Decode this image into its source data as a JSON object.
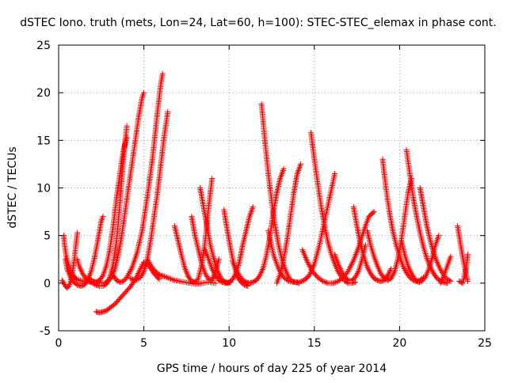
{
  "chart_data": {
    "type": "scatter",
    "title": "dSTEC Iono. truth (mets, Lon=24, Lat=60, h=100): STEC-STEC_elemax in phase cont.",
    "xlabel": "GPS time / hours of day 225 of year 2014",
    "ylabel": "dSTEC  / TECUs",
    "xlim": [
      0,
      25
    ],
    "ylim": [
      -5,
      25
    ],
    "xticks": [
      0,
      5,
      10,
      15,
      20,
      25
    ],
    "yticks": [
      -5,
      0,
      5,
      10,
      15,
      20,
      25
    ],
    "grid": true,
    "grid_style": "dotted",
    "legend": "none",
    "marker": "+",
    "color": "#ff0000",
    "series": [
      {
        "x": [
          0.3,
          0.35,
          0.45,
          0.6,
          0.75,
          0.9,
          1.05,
          1.2,
          1.35,
          1.5,
          1.7,
          1.9,
          2.1,
          2.4
        ],
        "y": [
          5.0,
          4.0,
          2.8,
          1.8,
          1.1,
          0.7,
          0.4,
          0.3,
          0.25,
          0.2,
          0.15,
          0.15,
          0.1,
          0.1
        ]
      },
      {
        "x": [
          0.2,
          0.3,
          0.4,
          0.5,
          0.6,
          0.7,
          0.8,
          0.9,
          1.0,
          1.1
        ],
        "y": [
          0.3,
          0.0,
          -0.3,
          -0.5,
          -0.3,
          0.2,
          1.0,
          2.2,
          3.8,
          5.3
        ]
      },
      {
        "x": [
          0.4,
          0.5,
          0.7,
          0.9,
          1.1,
          1.3,
          1.5,
          1.7,
          1.9,
          2.1,
          2.3,
          2.5,
          2.6
        ],
        "y": [
          2.5,
          1.5,
          0.6,
          0.1,
          -0.2,
          -0.3,
          -0.2,
          0.3,
          1.2,
          2.6,
          4.5,
          6.5,
          7.0
        ]
      },
      {
        "x": [
          1.1,
          1.2,
          1.4,
          1.6,
          1.8,
          2.0,
          2.2,
          2.4,
          2.6,
          2.8,
          3.0,
          3.2,
          3.4,
          3.6,
          3.8,
          4.0
        ],
        "y": [
          2.5,
          1.8,
          1.0,
          0.5,
          0.2,
          0.0,
          -0.2,
          -0.3,
          -0.3,
          -0.1,
          0.6,
          2.0,
          4.5,
          8.5,
          13.0,
          16.5
        ]
      },
      {
        "x": [
          1.8,
          2.0,
          2.2,
          2.4,
          2.6,
          2.8,
          3.0,
          3.2,
          3.4,
          3.6,
          3.8,
          4.0
        ],
        "y": [
          0.5,
          0.2,
          0.1,
          0.3,
          0.8,
          1.8,
          3.5,
          6.0,
          9.0,
          11.5,
          14.0,
          15.3
        ]
      },
      {
        "x": [
          2.5,
          2.7,
          2.9,
          3.1,
          3.3,
          3.5,
          3.7,
          3.9,
          4.1,
          4.3,
          4.5,
          4.7,
          4.9,
          5.0
        ],
        "y": [
          0.0,
          0.0,
          0.2,
          0.6,
          1.5,
          3.0,
          5.0,
          7.5,
          10.0,
          12.5,
          15.0,
          17.5,
          19.5,
          20.0
        ]
      },
      {
        "x": [
          2.2,
          2.4,
          2.6,
          2.8,
          3.0,
          3.3,
          3.6,
          3.9,
          4.2,
          4.5,
          4.8,
          5.0,
          5.3,
          5.6,
          5.9
        ],
        "y": [
          -3.0,
          -3.1,
          -3.0,
          -2.9,
          -2.6,
          -2.2,
          -1.6,
          -1.0,
          -0.4,
          0.4,
          1.5,
          2.2,
          1.8,
          1.0,
          0.4
        ]
      },
      {
        "x": [
          3.2,
          3.4,
          3.6,
          3.8,
          4.0,
          4.3,
          4.6,
          4.9,
          5.2,
          5.5,
          5.8,
          6.0,
          6.1
        ],
        "y": [
          0.8,
          0.3,
          0.1,
          0.2,
          0.6,
          1.6,
          3.2,
          5.5,
          9.0,
          13.0,
          18.0,
          21.0,
          22.0
        ]
      },
      {
        "x": [
          4.2,
          4.5,
          4.8,
          5.0,
          5.2,
          5.4,
          5.6,
          5.8,
          6.0,
          6.2,
          6.4
        ],
        "y": [
          0.5,
          0.3,
          0.6,
          1.2,
          2.5,
          4.5,
          7.0,
          9.5,
          12.5,
          15.5,
          18.0
        ]
      },
      {
        "x": [
          5.2,
          5.5,
          5.8,
          6.0,
          6.2,
          6.5,
          6.8,
          7.1,
          7.4,
          7.7,
          8.0,
          8.4,
          8.8,
          9.2
        ],
        "y": [
          2.5,
          1.6,
          1.0,
          0.8,
          0.7,
          0.5,
          0.3,
          0.2,
          0.1,
          0.0,
          -0.1,
          0.0,
          0.1,
          0.0
        ]
      },
      {
        "x": [
          6.8,
          7.0,
          7.2,
          7.4,
          7.6,
          7.8,
          8.0,
          8.2,
          8.4,
          8.6,
          8.8,
          9.0
        ],
        "y": [
          6.0,
          4.5,
          3.0,
          1.6,
          0.7,
          0.2,
          0.1,
          0.5,
          2.0,
          4.5,
          8.0,
          11.0
        ]
      },
      {
        "x": [
          7.8,
          8.0,
          8.2,
          8.4,
          8.6,
          8.8,
          9.0,
          9.2,
          9.4
        ],
        "y": [
          7.0,
          5.0,
          3.5,
          2.0,
          1.0,
          0.4,
          0.3,
          1.2,
          2.5
        ]
      },
      {
        "x": [
          8.3,
          8.5,
          8.7,
          8.9,
          9.1,
          9.3,
          9.5,
          9.7,
          9.9,
          10.1
        ],
        "y": [
          10.0,
          8.0,
          6.0,
          4.0,
          2.6,
          1.4,
          0.6,
          0.2,
          0.0,
          0.1
        ]
      },
      {
        "x": [
          8.6,
          8.8,
          9.0,
          9.2,
          9.4,
          9.6,
          9.8,
          10.0,
          10.2,
          10.4,
          10.6,
          10.8,
          11.0,
          11.2,
          11.4
        ],
        "y": [
          3.5,
          2.5,
          1.5,
          0.8,
          0.3,
          0.1,
          0.0,
          0.1,
          0.4,
          1.0,
          2.2,
          4.0,
          5.5,
          7.0,
          8.0
        ]
      },
      {
        "x": [
          9.7,
          9.9,
          10.1,
          10.3,
          10.5,
          10.7,
          10.9,
          11.1
        ],
        "y": [
          7.7,
          5.5,
          3.5,
          1.8,
          0.6,
          0.1,
          -0.2,
          -0.3
        ]
      },
      {
        "x": [
          10.2,
          10.4,
          10.6,
          10.8,
          11.0,
          11.2,
          11.4,
          11.6,
          11.8,
          12.0,
          12.2,
          12.4,
          12.6,
          12.8,
          13.0,
          13.2
        ],
        "y": [
          2.3,
          1.5,
          0.8,
          0.3,
          0.1,
          0.0,
          0.1,
          0.3,
          0.8,
          1.6,
          3.0,
          5.0,
          7.5,
          9.5,
          11.0,
          12.0
        ]
      },
      {
        "x": [
          11.9,
          12.1,
          12.3,
          12.5,
          12.7,
          12.9,
          13.1,
          13.3,
          13.5,
          13.7,
          13.9,
          14.1
        ],
        "y": [
          18.8,
          15.0,
          11.5,
          8.5,
          6.0,
          4.0,
          2.5,
          1.4,
          0.6,
          0.2,
          0.1,
          0.0
        ]
      },
      {
        "x": [
          12.3,
          12.6,
          12.9,
          13.2,
          13.5,
          13.8,
          14.1,
          14.4,
          14.7,
          15.0,
          15.3,
          15.6,
          15.9,
          16.2
        ],
        "y": [
          5.5,
          3.0,
          1.5,
          0.6,
          0.2,
          0.1,
          0.1,
          0.3,
          0.8,
          2.0,
          4.0,
          6.5,
          9.0,
          11.5
        ]
      },
      {
        "x": [
          12.8,
          13.0,
          13.2,
          13.4,
          13.6,
          13.8,
          14.0,
          14.2
        ],
        "y": [
          0.0,
          1.0,
          2.5,
          4.5,
          7.0,
          9.5,
          11.5,
          12.5
        ]
      },
      {
        "x": [
          14.8,
          15.0,
          15.2,
          15.4,
          15.6,
          15.8,
          16.0,
          16.2,
          16.4,
          16.6,
          16.8,
          17.0,
          17.2,
          17.4
        ],
        "y": [
          15.8,
          13.0,
          10.5,
          8.0,
          6.0,
          4.3,
          3.0,
          2.0,
          1.2,
          0.6,
          0.2,
          0.0,
          0.0,
          0.1
        ]
      },
      {
        "x": [
          14.3,
          14.6,
          14.9,
          15.2,
          15.5,
          15.8,
          16.1,
          16.4,
          16.7,
          17.0,
          17.3,
          17.6,
          17.9,
          18.2,
          18.5
        ],
        "y": [
          3.5,
          2.2,
          1.2,
          0.6,
          0.2,
          0.0,
          0.0,
          0.2,
          0.6,
          1.3,
          2.4,
          3.8,
          5.5,
          7.0,
          7.5
        ]
      },
      {
        "x": [
          16.2,
          16.4,
          16.6,
          16.8,
          17.0,
          17.2,
          17.4,
          17.6,
          17.8,
          18.0
        ],
        "y": [
          3.0,
          2.0,
          1.2,
          0.6,
          0.3,
          0.3,
          0.6,
          1.3,
          2.5,
          4.0
        ]
      },
      {
        "x": [
          17.3,
          17.5,
          17.7,
          17.9,
          18.1,
          18.3,
          18.5,
          18.7,
          18.9,
          19.1,
          19.3,
          19.5
        ],
        "y": [
          8.0,
          6.0,
          4.2,
          2.8,
          1.7,
          1.0,
          0.5,
          0.3,
          0.2,
          0.3,
          0.8,
          1.5
        ]
      },
      {
        "x": [
          18.1,
          18.3,
          18.5,
          18.7,
          18.9,
          19.1,
          19.3,
          19.5,
          19.7,
          19.9,
          20.1,
          20.3,
          20.5,
          20.7
        ],
        "y": [
          5.5,
          4.0,
          2.8,
          1.8,
          1.0,
          0.5,
          0.3,
          0.5,
          1.2,
          2.5,
          4.5,
          7.0,
          9.5,
          11.0
        ]
      },
      {
        "x": [
          19.0,
          19.2,
          19.4,
          19.6,
          19.8,
          20.0,
          20.2,
          20.4,
          20.6,
          20.8,
          21.0,
          21.2,
          21.4
        ],
        "y": [
          13.0,
          10.0,
          7.5,
          5.5,
          4.0,
          2.8,
          1.8,
          1.1,
          0.6,
          0.3,
          0.2,
          0.3,
          0.6
        ]
      },
      {
        "x": [
          20.4,
          20.6,
          20.8,
          21.0,
          21.2,
          21.4,
          21.6,
          21.8,
          22.0,
          22.2,
          22.4,
          22.6,
          22.8
        ],
        "y": [
          14.0,
          11.5,
          9.0,
          7.0,
          5.3,
          3.8,
          2.6,
          1.7,
          1.0,
          0.5,
          0.2,
          0.1,
          0.0
        ]
      },
      {
        "x": [
          20.1,
          20.3,
          20.5,
          20.7,
          20.9,
          21.1,
          21.3,
          21.5,
          21.7,
          21.9,
          22.1,
          22.3
        ],
        "y": [
          4.5,
          3.0,
          1.8,
          1.0,
          0.4,
          0.1,
          0.2,
          0.6,
          1.4,
          2.6,
          4.0,
          5.0
        ]
      },
      {
        "x": [
          21.2,
          21.4,
          21.6,
          21.8,
          22.0,
          22.2,
          22.4,
          22.6,
          22.8,
          23.0
        ],
        "y": [
          10.0,
          8.0,
          6.0,
          4.5,
          3.2,
          2.2,
          1.4,
          0.8,
          0.4,
          0.2
        ]
      },
      {
        "x": [
          22.4,
          22.6,
          22.8,
          23.0
        ],
        "y": [
          0.0,
          0.8,
          1.8,
          2.8
        ]
      },
      {
        "x": [
          23.4,
          23.6,
          23.8,
          24.0
        ],
        "y": [
          6.0,
          3.8,
          1.8,
          0.2
        ]
      },
      {
        "x": [
          23.5,
          23.7,
          23.9,
          24.0
        ],
        "y": [
          0.2,
          0.0,
          1.5,
          3.0
        ]
      }
    ]
  }
}
